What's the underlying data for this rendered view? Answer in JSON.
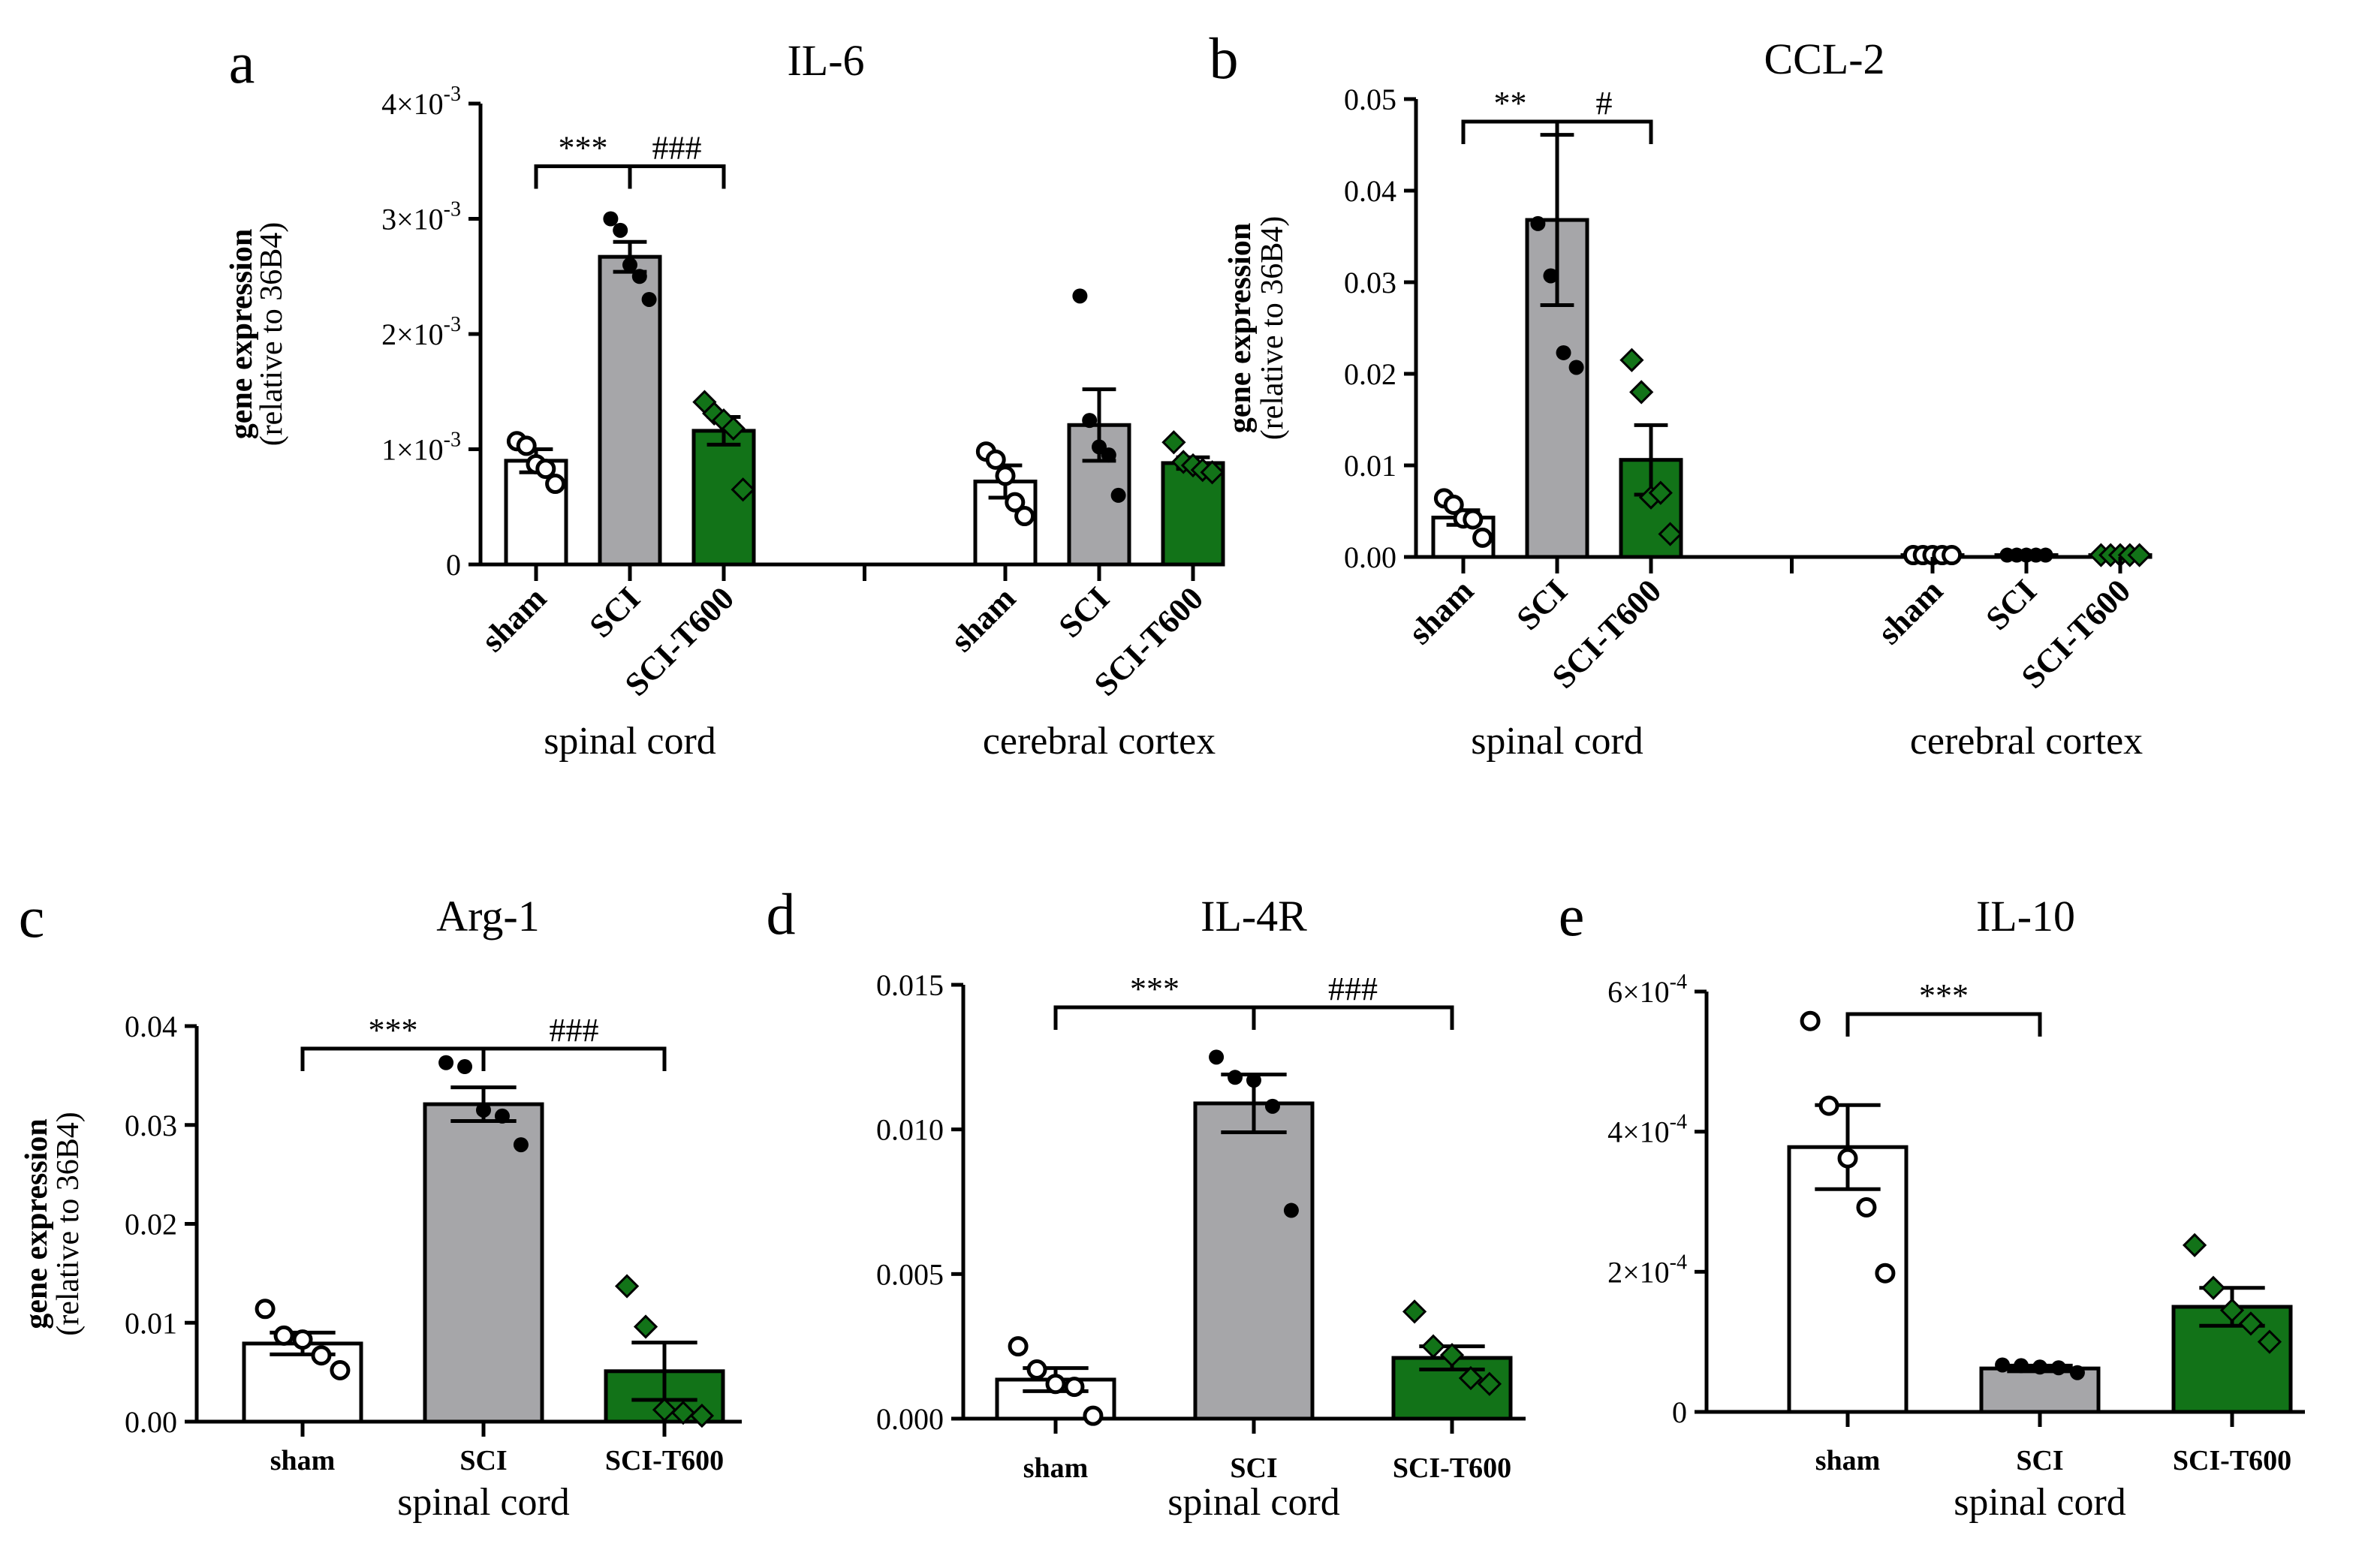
{
  "chart_data": [
    {
      "id": "a",
      "type": "bar",
      "panel_letter": "a",
      "title": "IL-6",
      "ylabel_bold": "gene expression",
      "ylabel_sub": "(relative to 36B4)",
      "ylim": [
        0,
        0.004
      ],
      "yticks": [
        {
          "v": 0,
          "m": "0",
          "e": ""
        },
        {
          "v": 0.001,
          "m": "1×10",
          "e": "-3"
        },
        {
          "v": 0.002,
          "m": "2×10",
          "e": "-3"
        },
        {
          "v": 0.003,
          "m": "3×10",
          "e": "-3"
        },
        {
          "v": 0.004,
          "m": "4×10",
          "e": "-3"
        }
      ],
      "categories": [
        "sham",
        "SCI",
        "SCI-T600",
        "sham",
        "SCI",
        "SCI-T600"
      ],
      "groups": [
        {
          "label": "spinal cord",
          "from": 0,
          "to": 2
        },
        {
          "label": "cerebral cortex",
          "from": 3,
          "to": 5
        }
      ],
      "series": [
        {
          "name": "sham",
          "color": "#ffffff",
          "marker": "open-circle"
        },
        {
          "name": "SCI",
          "color": "#a6a6a9",
          "marker": "dot"
        },
        {
          "name": "SCI-T600",
          "color": "#127318",
          "marker": "diamond"
        }
      ],
      "values": [
        0.0009,
        0.00267,
        0.00116,
        0.00072,
        0.00121,
        0.00088
      ],
      "sem": [
        0.0001,
        0.00013,
        0.00012,
        0.00014,
        0.00031,
        5e-05
      ],
      "points": [
        [
          0.00107,
          0.00103,
          0.00087,
          0.00083,
          0.0007
        ],
        [
          0.003,
          0.0029,
          0.0026,
          0.0025,
          0.0023
        ],
        [
          0.00141,
          0.00131,
          0.00125,
          0.00118,
          0.00065
        ],
        [
          0.00098,
          0.00091,
          0.00077,
          0.00054,
          0.00042
        ],
        [
          0.00233,
          0.00125,
          0.00102,
          0.00095,
          0.0006
        ],
        [
          0.00106,
          0.00089,
          0.00086,
          0.00082,
          0.0008
        ]
      ],
      "brackets": [
        {
          "from": 0,
          "to": 1,
          "label": "***"
        },
        {
          "from": 1,
          "to": 2,
          "label": "###"
        }
      ]
    },
    {
      "id": "b",
      "type": "bar",
      "panel_letter": "b",
      "title": "CCL-2",
      "ylabel_bold": "gene expression",
      "ylabel_sub": "(relative to 36B4)",
      "ylim": [
        0,
        0.05
      ],
      "yticks": [
        {
          "v": 0,
          "m": "0.00",
          "e": ""
        },
        {
          "v": 0.01,
          "m": "0.01",
          "e": ""
        },
        {
          "v": 0.02,
          "m": "0.02",
          "e": ""
        },
        {
          "v": 0.03,
          "m": "0.03",
          "e": ""
        },
        {
          "v": 0.04,
          "m": "0.04",
          "e": ""
        },
        {
          "v": 0.05,
          "m": "0.05",
          "e": ""
        }
      ],
      "categories": [
        "sham",
        "SCI",
        "SCI-T600",
        "sham",
        "SCI",
        "SCI-T600"
      ],
      "groups": [
        {
          "label": "spinal cord",
          "from": 0,
          "to": 2
        },
        {
          "label": "cerebral cortex",
          "from": 3,
          "to": 5
        }
      ],
      "series": [
        {
          "name": "sham",
          "color": "#ffffff",
          "marker": "open-circle"
        },
        {
          "name": "SCI",
          "color": "#a6a6a9",
          "marker": "dot"
        },
        {
          "name": "SCI-T600",
          "color": "#127318",
          "marker": "diamond"
        }
      ],
      "values": [
        0.0043,
        0.0368,
        0.0106,
        0.0002,
        0.0002,
        0.0002
      ],
      "sem": [
        0.0008,
        0.0093,
        0.0038,
        0.0001,
        0.0001,
        0.0001
      ],
      "points": [
        [
          0.0064,
          0.0057,
          0.0042,
          0.0041,
          0.0021
        ],
        [
          0.0364,
          0.0307,
          0.0223,
          0.0207
        ],
        [
          0.0215,
          0.018,
          0.0065,
          0.007,
          0.0025
        ],
        [
          0.0002,
          0.0002,
          0.0002,
          0.0002,
          0.0002
        ],
        [
          0.0002,
          0.0002,
          0.0002,
          0.0002,
          0.0002
        ],
        [
          0.0002,
          0.0002,
          0.0002,
          0.0002,
          0.0002
        ]
      ],
      "brackets": [
        {
          "from": 0,
          "to": 1,
          "label": "**"
        },
        {
          "from": 1,
          "to": 2,
          "label": "#"
        }
      ]
    },
    {
      "id": "c",
      "type": "bar",
      "panel_letter": "c",
      "title": "Arg-1",
      "ylabel_bold": "gene expression",
      "ylabel_sub": "(relative to 36B4)",
      "ylim": [
        0,
        0.04
      ],
      "yticks": [
        {
          "v": 0,
          "m": "0.00",
          "e": ""
        },
        {
          "v": 0.01,
          "m": "0.01",
          "e": ""
        },
        {
          "v": 0.02,
          "m": "0.02",
          "e": ""
        },
        {
          "v": 0.03,
          "m": "0.03",
          "e": ""
        },
        {
          "v": 0.04,
          "m": "0.04",
          "e": ""
        }
      ],
      "categories": [
        "sham",
        "SCI",
        "SCI-T600"
      ],
      "groups": [
        {
          "label": "spinal cord",
          "from": 0,
          "to": 2
        }
      ],
      "series": [
        {
          "name": "sham",
          "color": "#ffffff",
          "marker": "open-circle"
        },
        {
          "name": "SCI",
          "color": "#a6a6a9",
          "marker": "dot"
        },
        {
          "name": "SCI-T600",
          "color": "#127318",
          "marker": "diamond"
        }
      ],
      "values": [
        0.0079,
        0.0321,
        0.0051
      ],
      "sem": [
        0.0011,
        0.0017,
        0.0029
      ],
      "points": [
        [
          0.0114,
          0.0087,
          0.0083,
          0.0067,
          0.0052
        ],
        [
          0.0363,
          0.0359,
          0.0315,
          0.0309,
          0.028
        ],
        [
          0.0137,
          0.0096,
          0.0012,
          0.0009,
          0.0006
        ]
      ],
      "brackets": [
        {
          "from": 0,
          "to": 1,
          "label": "***"
        },
        {
          "from": 1,
          "to": 2,
          "label": "###"
        }
      ]
    },
    {
      "id": "d",
      "type": "bar",
      "panel_letter": "d",
      "title": "IL-4R",
      "ylabel_bold": "",
      "ylabel_sub": "",
      "ylim": [
        0,
        0.015
      ],
      "yticks": [
        {
          "v": 0,
          "m": "0.000",
          "e": ""
        },
        {
          "v": 0.005,
          "m": "0.005",
          "e": ""
        },
        {
          "v": 0.01,
          "m": "0.010",
          "e": ""
        },
        {
          "v": 0.015,
          "m": "0.015",
          "e": ""
        }
      ],
      "categories": [
        "sham",
        "SCI",
        "SCI-T600"
      ],
      "groups": [
        {
          "label": "spinal cord",
          "from": 0,
          "to": 2
        }
      ],
      "series": [
        {
          "name": "sham",
          "color": "#ffffff",
          "marker": "open-circle"
        },
        {
          "name": "SCI",
          "color": "#a6a6a9",
          "marker": "dot"
        },
        {
          "name": "SCI-T600",
          "color": "#127318",
          "marker": "diamond"
        }
      ],
      "values": [
        0.00135,
        0.0109,
        0.0021
      ],
      "sem": [
        0.0004,
        0.001,
        0.0004
      ],
      "points": [
        [
          0.0025,
          0.0017,
          0.0012,
          0.0011,
          0.0001
        ],
        [
          0.0125,
          0.0118,
          0.0117,
          0.0108,
          0.0072
        ],
        [
          0.0037,
          0.0025,
          0.0022,
          0.0014,
          0.0012
        ]
      ],
      "brackets": [
        {
          "from": 0,
          "to": 1,
          "label": "***"
        },
        {
          "from": 1,
          "to": 2,
          "label": "###"
        }
      ]
    },
    {
      "id": "e",
      "type": "bar",
      "panel_letter": "e",
      "title": "IL-10",
      "ylabel_bold": "",
      "ylabel_sub": "",
      "ylim": [
        0,
        0.0006
      ],
      "yticks": [
        {
          "v": 0,
          "m": "0",
          "e": ""
        },
        {
          "v": 0.0002,
          "m": "2×10",
          "e": "-4"
        },
        {
          "v": 0.0004,
          "m": "4×10",
          "e": "-4"
        },
        {
          "v": 0.0006,
          "m": "6×10",
          "e": "-4"
        }
      ],
      "categories": [
        "sham",
        "SCI",
        "SCI-T600"
      ],
      "groups": [
        {
          "label": "spinal cord",
          "from": 0,
          "to": 2
        }
      ],
      "series": [
        {
          "name": "sham",
          "color": "#ffffff",
          "marker": "open-circle"
        },
        {
          "name": "SCI",
          "color": "#a6a6a9",
          "marker": "dot"
        },
        {
          "name": "SCI-T600",
          "color": "#127318",
          "marker": "diamond"
        }
      ],
      "values": [
        0.000378,
        6.2e-05,
        0.00015
      ],
      "sem": [
        6e-05,
        4e-06,
        2.7e-05
      ],
      "points": [
        [
          0.000558,
          0.000437,
          0.000362,
          0.000292,
          0.000198
        ],
        [
          6.7e-05,
          6.6e-05,
          6.4e-05,
          6.3e-05,
          5.6e-05
        ],
        [
          0.000238,
          0.000177,
          0.000145,
          0.000126,
          0.0001
        ]
      ],
      "brackets": [
        {
          "from": 0,
          "to": 1,
          "label": "***"
        }
      ]
    }
  ]
}
